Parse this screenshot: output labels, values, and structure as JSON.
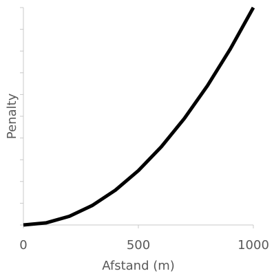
{
  "chart_data": {
    "type": "line",
    "title": "",
    "xlabel": "Afstand (m)",
    "ylabel": "Penalty",
    "xlim": [
      0,
      1000
    ],
    "ylim": [
      0,
      100
    ],
    "x_ticks": [
      0,
      500,
      1000
    ],
    "x_tick_labels": [
      "0",
      "500",
      "1000"
    ],
    "y_tick_count": 10,
    "y_tick_labels_shown": false,
    "grid": false,
    "legend": "none",
    "series": [
      {
        "color": "#000000",
        "x": [
          0,
          100,
          200,
          300,
          400,
          500,
          600,
          700,
          800,
          900,
          1000
        ],
        "y": [
          0,
          1,
          4,
          9,
          16,
          25,
          36,
          49,
          64,
          81,
          100
        ]
      }
    ]
  }
}
